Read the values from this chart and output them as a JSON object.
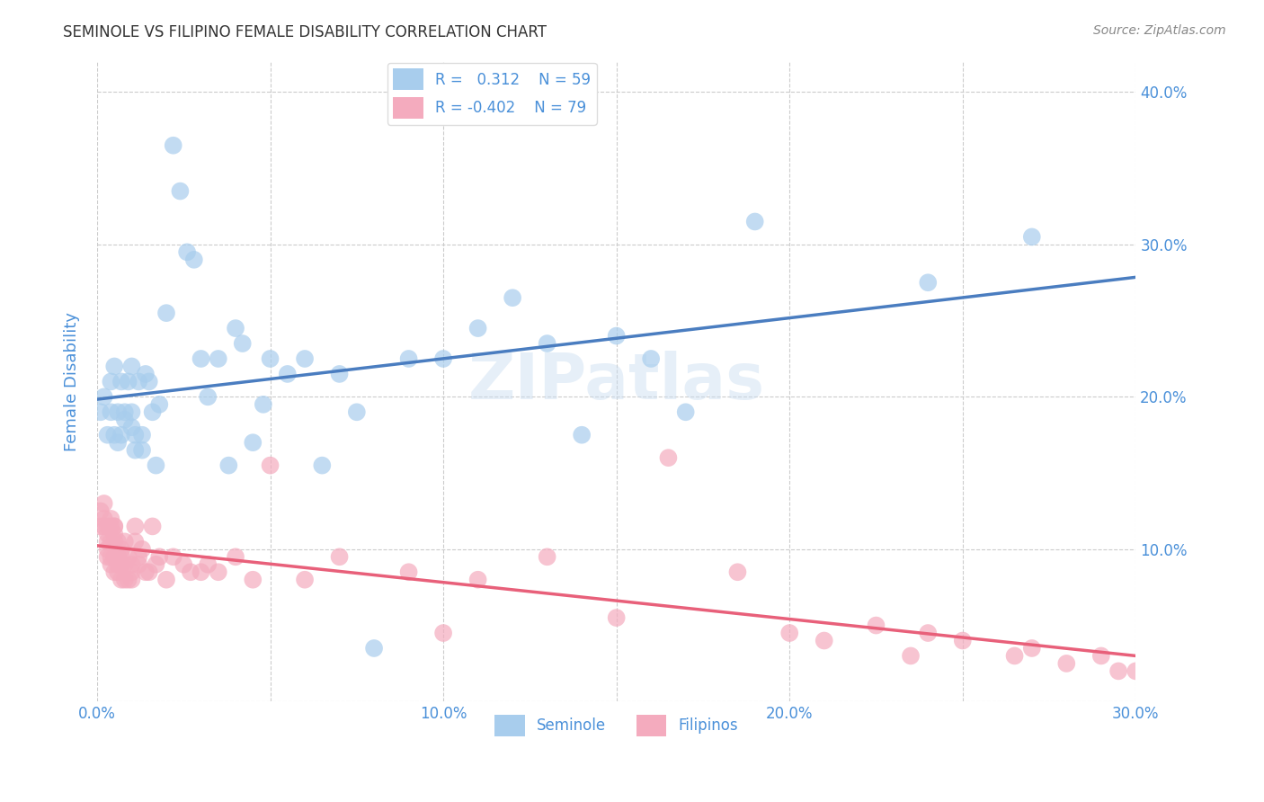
{
  "title": "SEMINOLE VS FILIPINO FEMALE DISABILITY CORRELATION CHART",
  "source": "Source: ZipAtlas.com",
  "ylabel": "Female Disability",
  "watermark": "ZIPatlas",
  "xlim": [
    0.0,
    0.3
  ],
  "ylim": [
    0.0,
    0.42
  ],
  "xticks": [
    0.0,
    0.05,
    0.1,
    0.15,
    0.2,
    0.25,
    0.3
  ],
  "yticks": [
    0.0,
    0.1,
    0.2,
    0.3,
    0.4
  ],
  "ytick_labels_right": [
    "",
    "10.0%",
    "20.0%",
    "30.0%",
    "40.0%"
  ],
  "xtick_labels": [
    "0.0%",
    "",
    "10.0%",
    "",
    "20.0%",
    "",
    "30.0%"
  ],
  "seminole_color": "#A8CDED",
  "filipino_color": "#F4ABBE",
  "seminole_line_color": "#4A7DC0",
  "filipino_line_color": "#E8607A",
  "seminole_R": 0.312,
  "seminole_N": 59,
  "filipino_R": -0.402,
  "filipino_N": 79,
  "legend_label_1": "Seminole",
  "legend_label_2": "Filipinos",
  "title_color": "#333333",
  "axis_color": "#4A90D9",
  "grid_color": "#CCCCCC",
  "background_color": "#FFFFFF",
  "seminole_x": [
    0.001,
    0.002,
    0.003,
    0.004,
    0.004,
    0.005,
    0.005,
    0.006,
    0.006,
    0.007,
    0.007,
    0.008,
    0.008,
    0.009,
    0.01,
    0.01,
    0.01,
    0.011,
    0.011,
    0.012,
    0.013,
    0.013,
    0.014,
    0.015,
    0.016,
    0.017,
    0.018,
    0.02,
    0.022,
    0.024,
    0.026,
    0.028,
    0.03,
    0.032,
    0.035,
    0.038,
    0.04,
    0.042,
    0.045,
    0.048,
    0.05,
    0.055,
    0.06,
    0.065,
    0.07,
    0.075,
    0.08,
    0.09,
    0.1,
    0.11,
    0.12,
    0.13,
    0.14,
    0.15,
    0.16,
    0.17,
    0.19,
    0.24,
    0.27
  ],
  "seminole_y": [
    0.19,
    0.2,
    0.175,
    0.19,
    0.21,
    0.175,
    0.22,
    0.17,
    0.19,
    0.175,
    0.21,
    0.185,
    0.19,
    0.21,
    0.18,
    0.19,
    0.22,
    0.165,
    0.175,
    0.21,
    0.165,
    0.175,
    0.215,
    0.21,
    0.19,
    0.155,
    0.195,
    0.255,
    0.365,
    0.335,
    0.295,
    0.29,
    0.225,
    0.2,
    0.225,
    0.155,
    0.245,
    0.235,
    0.17,
    0.195,
    0.225,
    0.215,
    0.225,
    0.155,
    0.215,
    0.19,
    0.035,
    0.225,
    0.225,
    0.245,
    0.265,
    0.235,
    0.175,
    0.24,
    0.225,
    0.19,
    0.315,
    0.275,
    0.305
  ],
  "filipino_x": [
    0.001,
    0.001,
    0.002,
    0.002,
    0.002,
    0.003,
    0.003,
    0.003,
    0.003,
    0.003,
    0.004,
    0.004,
    0.004,
    0.004,
    0.004,
    0.005,
    0.005,
    0.005,
    0.005,
    0.005,
    0.005,
    0.006,
    0.006,
    0.006,
    0.006,
    0.007,
    0.007,
    0.007,
    0.007,
    0.008,
    0.008,
    0.008,
    0.009,
    0.009,
    0.01,
    0.01,
    0.01,
    0.011,
    0.011,
    0.012,
    0.012,
    0.013,
    0.014,
    0.015,
    0.016,
    0.017,
    0.018,
    0.02,
    0.022,
    0.025,
    0.027,
    0.03,
    0.032,
    0.035,
    0.04,
    0.045,
    0.05,
    0.06,
    0.07,
    0.09,
    0.1,
    0.11,
    0.13,
    0.15,
    0.165,
    0.185,
    0.2,
    0.21,
    0.225,
    0.235,
    0.24,
    0.25,
    0.265,
    0.27,
    0.28,
    0.29,
    0.295,
    0.3,
    0.305
  ],
  "filipino_y": [
    0.115,
    0.125,
    0.13,
    0.115,
    0.12,
    0.115,
    0.105,
    0.11,
    0.1,
    0.095,
    0.12,
    0.115,
    0.105,
    0.095,
    0.09,
    0.115,
    0.11,
    0.105,
    0.115,
    0.095,
    0.085,
    0.105,
    0.095,
    0.085,
    0.09,
    0.1,
    0.095,
    0.09,
    0.08,
    0.105,
    0.09,
    0.08,
    0.095,
    0.08,
    0.09,
    0.085,
    0.08,
    0.115,
    0.105,
    0.09,
    0.095,
    0.1,
    0.085,
    0.085,
    0.115,
    0.09,
    0.095,
    0.08,
    0.095,
    0.09,
    0.085,
    0.085,
    0.09,
    0.085,
    0.095,
    0.08,
    0.155,
    0.08,
    0.095,
    0.085,
    0.045,
    0.08,
    0.095,
    0.055,
    0.16,
    0.085,
    0.045,
    0.04,
    0.05,
    0.03,
    0.045,
    0.04,
    0.03,
    0.035,
    0.025,
    0.03,
    0.02,
    0.02,
    0.03
  ]
}
